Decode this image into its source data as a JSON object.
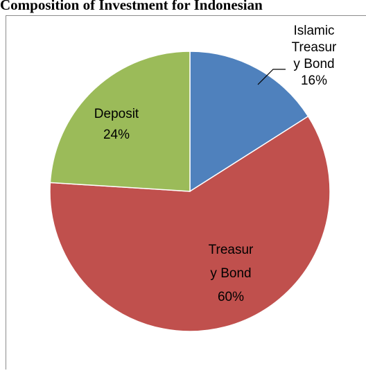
{
  "chart_data": {
    "type": "pie",
    "title": "Composition of Investment for Indonesian",
    "slices": [
      {
        "name": "Islamic Treasury Bond",
        "label_lines": [
          "Islamic",
          "Treasur",
          "y Bond"
        ],
        "value": 16,
        "value_label": "16%",
        "color": "#4f81bd"
      },
      {
        "name": "Treasury Bond",
        "label_lines": [
          "Treasur",
          "y Bond"
        ],
        "value": 60,
        "value_label": "60%",
        "color": "#c0504d"
      },
      {
        "name": "Deposit",
        "label_lines": [
          "Deposit"
        ],
        "value": 24,
        "value_label": "24%",
        "color": "#9bbb59"
      }
    ],
    "start_angle": "12 o'clock",
    "direction": "clockwise",
    "legend": "none"
  }
}
